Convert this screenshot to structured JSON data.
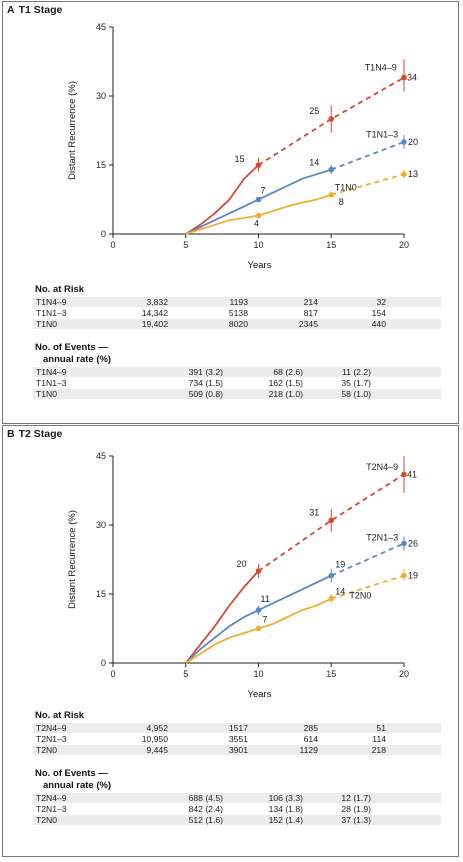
{
  "colors": {
    "n4_9": "#d24a35",
    "n1_3": "#5c86c8",
    "n0": "#efae34"
  },
  "chart_data": [
    {
      "type": "line",
      "panel_letter": "A",
      "title": "T1 Stage",
      "xlabel": "Years",
      "ylabel": "Distant Recurrence (%)",
      "xticks": [
        "0",
        "5",
        "10",
        "15",
        "20"
      ],
      "yticks": [
        "0",
        "15",
        "30",
        "45"
      ],
      "xlim": [
        0,
        20
      ],
      "ylim": [
        0,
        45
      ],
      "series": [
        {
          "name": "T1N4–9",
          "color_key": "n4_9",
          "observed": [
            [
              5,
              0
            ],
            [
              6,
              2
            ],
            [
              7,
              4.5
            ],
            [
              8,
              7.5
            ],
            [
              9,
              12
            ],
            [
              10,
              15
            ]
          ],
          "projected": [
            [
              10,
              15
            ],
            [
              15,
              25
            ],
            [
              20,
              34
            ]
          ],
          "markers": [
            {
              "x": 10,
              "y": 15,
              "label": "15"
            },
            {
              "x": 15,
              "y": 25,
              "label": "25"
            },
            {
              "x": 20,
              "y": 34,
              "label": "34"
            }
          ],
          "ci": [
            [
              10,
              13.5,
              16.5
            ],
            [
              15,
              22,
              28
            ],
            [
              20,
              31,
              38
            ]
          ]
        },
        {
          "name": "T1N1–3",
          "color_key": "n1_3",
          "observed": [
            [
              5,
              0
            ],
            [
              6,
              1.5
            ],
            [
              7,
              3
            ],
            [
              8,
              4.5
            ],
            [
              9,
              6
            ],
            [
              10,
              7.5
            ],
            [
              11,
              9
            ],
            [
              12,
              10.5
            ],
            [
              13,
              12
            ],
            [
              14,
              13
            ],
            [
              15,
              14
            ]
          ],
          "projected": [
            [
              15,
              14
            ],
            [
              20,
              20
            ]
          ],
          "markers": [
            {
              "x": 10,
              "y": 7.5,
              "label": "7"
            },
            {
              "x": 15,
              "y": 14,
              "label": "14"
            },
            {
              "x": 20,
              "y": 20,
              "label": "20"
            }
          ],
          "ci": [
            [
              10,
              7,
              8
            ],
            [
              15,
              13,
              15
            ],
            [
              20,
              18.5,
              21.5
            ]
          ]
        },
        {
          "name": "T1N0",
          "color_key": "n0",
          "observed": [
            [
              5,
              0
            ],
            [
              6,
              1
            ],
            [
              7,
              2
            ],
            [
              8,
              3
            ],
            [
              9,
              3.5
            ],
            [
              10,
              4
            ],
            [
              11,
              5
            ],
            [
              12,
              6
            ],
            [
              13,
              6.8
            ],
            [
              14,
              7.5
            ],
            [
              15,
              8.5
            ]
          ],
          "projected": [
            [
              15,
              8.5
            ],
            [
              20,
              13
            ]
          ],
          "markers": [
            {
              "x": 10,
              "y": 4,
              "label": "4"
            },
            {
              "x": 15,
              "y": 8.5,
              "label": "8"
            },
            {
              "x": 20,
              "y": 13,
              "label": "13"
            }
          ],
          "ci": [
            [
              10,
              3.8,
              4.2
            ],
            [
              15,
              8,
              9
            ],
            [
              20,
              12,
              14
            ]
          ]
        }
      ],
      "no_at_risk": {
        "heading": "No. at Risk",
        "rows": [
          {
            "name": "T1N4–9",
            "values": [
              "3,832",
              "1193",
              "214",
              "32"
            ]
          },
          {
            "name": "T1N1–3",
            "values": [
              "14,342",
              "5138",
              "817",
              "154"
            ]
          },
          {
            "name": "T1N0",
            "values": [
              "19,402",
              "8020",
              "2345",
              "440"
            ]
          }
        ]
      },
      "no_of_events": {
        "heading_line1": "No. of Events —",
        "heading_line2": "annual rate (%)",
        "rows": [
          {
            "name": "T1N4–9",
            "values": [
              "391 (3.2)",
              "68 (2.6)",
              "11 (2.2)"
            ]
          },
          {
            "name": "T1N1–3",
            "values": [
              "734 (1.5)",
              "162 (1.5)",
              "35 (1.7)"
            ]
          },
          {
            "name": "T1N0",
            "values": [
              "509 (0.8)",
              "218 (1.0)",
              "58 (1.0)"
            ]
          }
        ]
      }
    },
    {
      "type": "line",
      "panel_letter": "B",
      "title": "T2 Stage",
      "xlabel": "Years",
      "ylabel": "Distant Recurrence (%)",
      "xticks": [
        "0",
        "5",
        "10",
        "15",
        "20"
      ],
      "yticks": [
        "0",
        "15",
        "30",
        "45"
      ],
      "xlim": [
        0,
        20
      ],
      "ylim": [
        0,
        45
      ],
      "series": [
        {
          "name": "T2N4–9",
          "color_key": "n4_9",
          "observed": [
            [
              5,
              0
            ],
            [
              6,
              4
            ],
            [
              7,
              8
            ],
            [
              8,
              12.5
            ],
            [
              9,
              16.5
            ],
            [
              10,
              20
            ]
          ],
          "projected": [
            [
              10,
              20
            ],
            [
              15,
              31
            ],
            [
              20,
              41
            ]
          ],
          "markers": [
            {
              "x": 10,
              "y": 20,
              "label": "20"
            },
            {
              "x": 15,
              "y": 31,
              "label": "31"
            },
            {
              "x": 20,
              "y": 41,
              "label": "41"
            }
          ],
          "ci": [
            [
              10,
              18.5,
              21.5
            ],
            [
              15,
              28.5,
              33.5
            ],
            [
              20,
              37,
              45
            ]
          ]
        },
        {
          "name": "T2N1–3",
          "color_key": "n1_3",
          "observed": [
            [
              5,
              0
            ],
            [
              6,
              3
            ],
            [
              7,
              5.5
            ],
            [
              8,
              8
            ],
            [
              9,
              10
            ],
            [
              10,
              11.5
            ],
            [
              11,
              13
            ],
            [
              12,
              14.5
            ],
            [
              13,
              16
            ],
            [
              14,
              17.5
            ],
            [
              15,
              19
            ]
          ],
          "projected": [
            [
              15,
              19
            ],
            [
              20,
              26
            ]
          ],
          "markers": [
            {
              "x": 10,
              "y": 11.5,
              "label": "11"
            },
            {
              "x": 15,
              "y": 19,
              "label": "19"
            },
            {
              "x": 20,
              "y": 26,
              "label": "26"
            }
          ],
          "ci": [
            [
              10,
              10.5,
              12.5
            ],
            [
              15,
              17.5,
              20.5
            ],
            [
              20,
              24.5,
              27.5
            ]
          ]
        },
        {
          "name": "T2N0",
          "color_key": "n0",
          "observed": [
            [
              5,
              0
            ],
            [
              6,
              2
            ],
            [
              7,
              4
            ],
            [
              8,
              5.5
            ],
            [
              9,
              6.5
            ],
            [
              10,
              7.5
            ],
            [
              11,
              8.5
            ],
            [
              12,
              10
            ],
            [
              13,
              11.5
            ],
            [
              14,
              12.5
            ],
            [
              15,
              14
            ]
          ],
          "projected": [
            [
              15,
              14
            ],
            [
              20,
              19
            ]
          ],
          "markers": [
            {
              "x": 10,
              "y": 7.5,
              "label": "7"
            },
            {
              "x": 15,
              "y": 14,
              "label": "14"
            },
            {
              "x": 20,
              "y": 19,
              "label": "19"
            }
          ],
          "ci": [
            [
              10,
              7,
              8
            ],
            [
              15,
              13,
              15
            ],
            [
              20,
              18,
              20.5
            ]
          ]
        }
      ],
      "no_at_risk": {
        "heading": "No. at Risk",
        "rows": [
          {
            "name": "T2N4–9",
            "values": [
              "4,952",
              "1517",
              "285",
              "51"
            ]
          },
          {
            "name": "T2N1–3",
            "values": [
              "10,950",
              "3551",
              "614",
              "114"
            ]
          },
          {
            "name": "T2N0",
            "values": [
              "9,445",
              "3901",
              "1129",
              "218"
            ]
          }
        ]
      },
      "no_of_events": {
        "heading_line1": "No. of Events —",
        "heading_line2": "annual rate (%)",
        "rows": [
          {
            "name": "T2N4–9",
            "values": [
              "688 (4.5)",
              "106 (3.3)",
              "12 (1.7)"
            ]
          },
          {
            "name": "T2N1–3",
            "values": [
              "842 (2.4)",
              "134 (1.8)",
              "28 (1.9)"
            ]
          },
          {
            "name": "T2N0",
            "values": [
              "512 (1.6)",
              "152 (1.4)",
              "37 (1.3)"
            ]
          }
        ]
      }
    }
  ]
}
